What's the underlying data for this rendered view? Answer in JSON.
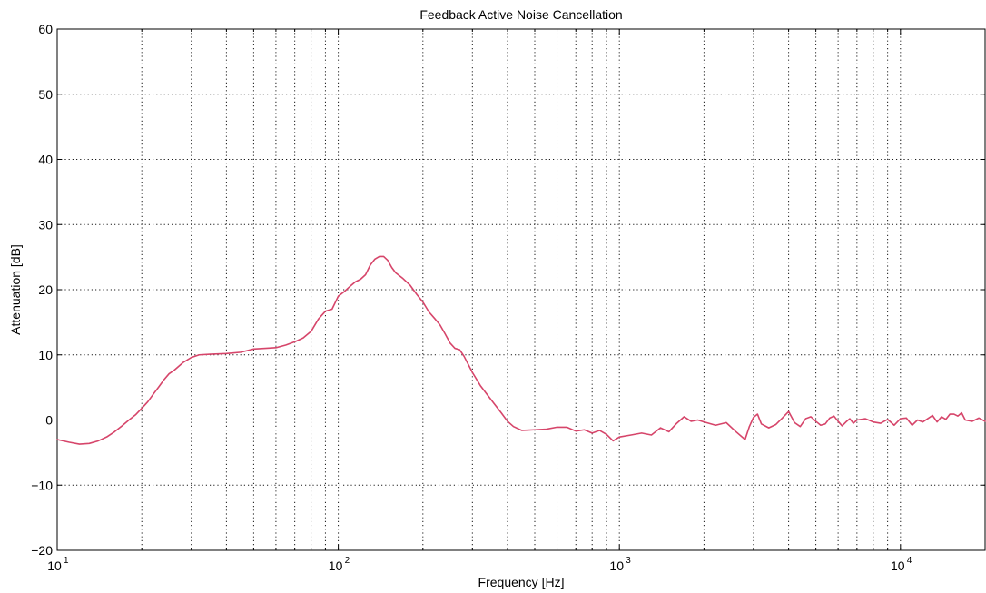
{
  "chart_data": {
    "type": "line",
    "title": "Feedback Active Noise Cancellation",
    "xlabel": "Frequency [Hz]",
    "ylabel": "Attenuation [dB]",
    "x_scale": "log",
    "xlim": [
      10,
      20000
    ],
    "ylim": [
      -20,
      60
    ],
    "grid": true,
    "x_ticks": [
      {
        "value": 10,
        "label": "10",
        "exp": "1"
      },
      {
        "value": 100,
        "label": "10",
        "exp": "2"
      },
      {
        "value": 1000,
        "label": "10",
        "exp": "3"
      },
      {
        "value": 10000,
        "label": "10",
        "exp": "4"
      }
    ],
    "y_ticks": [
      {
        "value": 60,
        "label": "60"
      },
      {
        "value": 50,
        "label": "50"
      },
      {
        "value": 40,
        "label": "40"
      },
      {
        "value": 30,
        "label": "30"
      },
      {
        "value": 20,
        "label": "20"
      },
      {
        "value": 10,
        "label": "10"
      },
      {
        "value": 0,
        "label": "0"
      },
      {
        "value": -10,
        "label": "−10"
      },
      {
        "value": -20,
        "label": "−20"
      }
    ],
    "series": [
      {
        "color": "#d6456a",
        "points": [
          [
            10,
            -3.0
          ],
          [
            11,
            -3.4
          ],
          [
            12,
            -3.7
          ],
          [
            13,
            -3.6
          ],
          [
            14,
            -3.2
          ],
          [
            15,
            -2.6
          ],
          [
            16,
            -1.8
          ],
          [
            17,
            -0.9
          ],
          [
            18,
            0.0
          ],
          [
            19,
            0.8
          ],
          [
            20,
            1.8
          ],
          [
            21,
            2.8
          ],
          [
            22,
            4.0
          ],
          [
            23,
            5.1
          ],
          [
            24,
            6.2
          ],
          [
            25,
            7.1
          ],
          [
            26,
            7.6
          ],
          [
            28,
            8.8
          ],
          [
            30,
            9.6
          ],
          [
            32,
            10.0
          ],
          [
            35,
            10.1
          ],
          [
            40,
            10.2
          ],
          [
            45,
            10.4
          ],
          [
            50,
            10.9
          ],
          [
            55,
            11.0
          ],
          [
            60,
            11.1
          ],
          [
            65,
            11.5
          ],
          [
            70,
            12.0
          ],
          [
            75,
            12.6
          ],
          [
            80,
            13.6
          ],
          [
            85,
            15.5
          ],
          [
            90,
            16.7
          ],
          [
            95,
            17.0
          ],
          [
            100,
            19.0
          ],
          [
            105,
            19.7
          ],
          [
            110,
            20.5
          ],
          [
            115,
            21.2
          ],
          [
            120,
            21.6
          ],
          [
            125,
            22.3
          ],
          [
            130,
            23.8
          ],
          [
            135,
            24.7
          ],
          [
            140,
            25.1
          ],
          [
            145,
            25.1
          ],
          [
            150,
            24.5
          ],
          [
            155,
            23.4
          ],
          [
            160,
            22.6
          ],
          [
            170,
            21.7
          ],
          [
            180,
            20.7
          ],
          [
            190,
            19.3
          ],
          [
            200,
            18.1
          ],
          [
            210,
            16.6
          ],
          [
            220,
            15.6
          ],
          [
            230,
            14.6
          ],
          [
            240,
            13.2
          ],
          [
            250,
            11.8
          ],
          [
            260,
            11.0
          ],
          [
            270,
            10.8
          ],
          [
            280,
            9.8
          ],
          [
            300,
            7.3
          ],
          [
            320,
            5.3
          ],
          [
            340,
            3.8
          ],
          [
            360,
            2.4
          ],
          [
            380,
            1.1
          ],
          [
            400,
            -0.2
          ],
          [
            420,
            -1.0
          ],
          [
            450,
            -1.6
          ],
          [
            500,
            -1.5
          ],
          [
            550,
            -1.4
          ],
          [
            600,
            -1.1
          ],
          [
            650,
            -1.1
          ],
          [
            700,
            -1.7
          ],
          [
            750,
            -1.5
          ],
          [
            800,
            -2.0
          ],
          [
            850,
            -1.6
          ],
          [
            900,
            -2.2
          ],
          [
            950,
            -3.2
          ],
          [
            1000,
            -2.6
          ],
          [
            1100,
            -2.3
          ],
          [
            1200,
            -2.0
          ],
          [
            1300,
            -2.3
          ],
          [
            1400,
            -1.2
          ],
          [
            1500,
            -1.8
          ],
          [
            1600,
            -0.5
          ],
          [
            1700,
            0.5
          ],
          [
            1800,
            -0.2
          ],
          [
            1900,
            0.0
          ],
          [
            2000,
            -0.3
          ],
          [
            2200,
            -0.8
          ],
          [
            2400,
            -0.4
          ],
          [
            2600,
            -1.8
          ],
          [
            2800,
            -3.0
          ],
          [
            2900,
            -1.0
          ],
          [
            3000,
            0.4
          ],
          [
            3100,
            0.9
          ],
          [
            3200,
            -0.6
          ],
          [
            3400,
            -1.2
          ],
          [
            3600,
            -0.7
          ],
          [
            3800,
            0.3
          ],
          [
            4000,
            1.3
          ],
          [
            4200,
            -0.4
          ],
          [
            4400,
            -1.0
          ],
          [
            4600,
            0.2
          ],
          [
            4800,
            0.5
          ],
          [
            5000,
            -0.2
          ],
          [
            5200,
            -0.8
          ],
          [
            5400,
            -0.6
          ],
          [
            5600,
            0.3
          ],
          [
            5800,
            0.6
          ],
          [
            6000,
            -0.2
          ],
          [
            6200,
            -0.9
          ],
          [
            6400,
            -0.3
          ],
          [
            6600,
            0.2
          ],
          [
            6800,
            -0.5
          ],
          [
            7000,
            0.0
          ],
          [
            7500,
            0.2
          ],
          [
            8000,
            -0.3
          ],
          [
            8500,
            -0.5
          ],
          [
            9000,
            0.1
          ],
          [
            9500,
            -0.8
          ],
          [
            10000,
            0.2
          ],
          [
            10500,
            0.3
          ],
          [
            11000,
            -0.8
          ],
          [
            11500,
            0.0
          ],
          [
            12000,
            -0.3
          ],
          [
            12500,
            0.2
          ],
          [
            13000,
            0.7
          ],
          [
            13500,
            -0.3
          ],
          [
            14000,
            0.5
          ],
          [
            14500,
            0.1
          ],
          [
            15000,
            0.9
          ],
          [
            15500,
            0.9
          ],
          [
            16000,
            0.6
          ],
          [
            16500,
            1.1
          ],
          [
            17000,
            0.0
          ],
          [
            18000,
            -0.2
          ],
          [
            19000,
            0.3
          ],
          [
            20000,
            -0.2
          ]
        ]
      }
    ]
  }
}
